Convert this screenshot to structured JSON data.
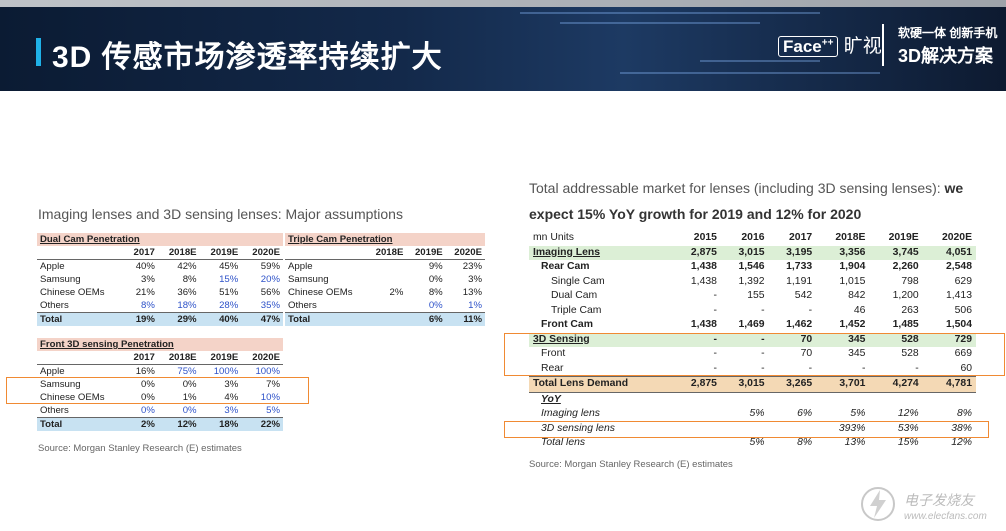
{
  "header": {
    "title": "3D 传感市场渗透率持续扩大",
    "brand_face": "Face",
    "brand_sup": "++",
    "brand_name": "旷视",
    "slogan_line1": "软硬一体 创新手机",
    "slogan_line2": "3D解决方案"
  },
  "left": {
    "caption": "Imaging lenses and 3D sensing lenses: Major assumptions",
    "dual": {
      "title": "Dual Cam Penetration",
      "cols": [
        "2017",
        "2018E",
        "2019E",
        "2020E"
      ],
      "rows": [
        {
          "label": "Apple",
          "values": [
            "40%",
            "42%",
            "45%",
            "59%"
          ]
        },
        {
          "label": "Samsung",
          "values": [
            "3%",
            "8%",
            "15%",
            "20%"
          ]
        },
        {
          "label": "Chinese OEMs",
          "values": [
            "21%",
            "36%",
            "51%",
            "56%"
          ]
        },
        {
          "label": "Others",
          "values": [
            "8%",
            "18%",
            "28%",
            "35%"
          ]
        }
      ],
      "total": {
        "label": "Total",
        "values": [
          "19%",
          "29%",
          "40%",
          "47%"
        ]
      }
    },
    "triple": {
      "title": "Triple Cam Penetration",
      "cols": [
        "2018E",
        "2019E",
        "2020E"
      ],
      "rows": [
        {
          "label": "Apple",
          "values": [
            "",
            "9%",
            "23%"
          ]
        },
        {
          "label": "Samsung",
          "values": [
            "",
            "0%",
            "3%"
          ]
        },
        {
          "label": "Chinese OEMs",
          "values": [
            "2%",
            "8%",
            "13%"
          ]
        },
        {
          "label": "Others",
          "values": [
            "",
            "0%",
            "1%"
          ]
        }
      ],
      "total": {
        "label": "Total",
        "values": [
          "",
          "6%",
          "11%"
        ]
      }
    },
    "front": {
      "title": "Front 3D sensing Penetration",
      "cols": [
        "2017",
        "2018E",
        "2019E",
        "2020E"
      ],
      "rows": [
        {
          "label": "Apple",
          "values": [
            "16%",
            "75%",
            "100%",
            "100%"
          ]
        },
        {
          "label": "Samsung",
          "values": [
            "0%",
            "0%",
            "3%",
            "7%"
          ]
        },
        {
          "label": "Chinese OEMs",
          "values": [
            "0%",
            "1%",
            "4%",
            "10%"
          ]
        },
        {
          "label": "Others",
          "values": [
            "0%",
            "0%",
            "3%",
            "5%"
          ]
        }
      ],
      "total": {
        "label": "Total",
        "values": [
          "2%",
          "12%",
          "18%",
          "22%"
        ]
      }
    },
    "source": "Source: Morgan Stanley Research (E) estimates"
  },
  "right": {
    "caption_line1": "Total addressable market for lenses (including 3D sensing lenses): ",
    "caption_line1_bold": "we",
    "caption_line2": "expect 15% YoY growth for 2019 and 12% for 2020",
    "units": "mn Units",
    "cols": [
      "2015",
      "2016",
      "2017",
      "2018E",
      "2019E",
      "2020E"
    ],
    "rows": [
      {
        "label": "Imaging Lens",
        "values": [
          "2,875",
          "3,015",
          "3,195",
          "3,356",
          "3,745",
          "4,051"
        ]
      },
      {
        "label": "Rear Cam",
        "values": [
          "1,438",
          "1,546",
          "1,733",
          "1,904",
          "2,260",
          "2,548"
        ]
      },
      {
        "label": "Single Cam",
        "values": [
          "1,438",
          "1,392",
          "1,191",
          "1,015",
          "798",
          "629"
        ]
      },
      {
        "label": "Dual Cam",
        "values": [
          "-",
          "155",
          "542",
          "842",
          "1,200",
          "1,413"
        ]
      },
      {
        "label": "Triple Cam",
        "values": [
          "-",
          "-",
          "-",
          "46",
          "263",
          "506"
        ]
      },
      {
        "label": "Front Cam",
        "values": [
          "1,438",
          "1,469",
          "1,462",
          "1,452",
          "1,485",
          "1,504"
        ]
      },
      {
        "label": "3D Sensing",
        "values": [
          "-",
          "-",
          "70",
          "345",
          "528",
          "729"
        ]
      },
      {
        "label": "Front",
        "values": [
          "-",
          "-",
          "70",
          "345",
          "528",
          "669"
        ]
      },
      {
        "label": "Rear",
        "values": [
          "-",
          "-",
          "-",
          "-",
          "-",
          "60"
        ]
      },
      {
        "label": "Total Lens Demand",
        "values": [
          "2,875",
          "3,015",
          "3,265",
          "3,701",
          "4,274",
          "4,781"
        ]
      }
    ],
    "yoy_label": "YoY",
    "yoy_rows": [
      {
        "label": "Imaging lens",
        "values": [
          "",
          "5%",
          "6%",
          "5%",
          "12%",
          "8%"
        ]
      },
      {
        "label": "3D sensing lens",
        "values": [
          "",
          "",
          "",
          "393%",
          "53%",
          "38%"
        ]
      },
      {
        "label": "Total lens",
        "values": [
          "",
          "5%",
          "8%",
          "13%",
          "15%",
          "12%"
        ]
      }
    ],
    "source": "Source: Morgan Stanley Research (E) estimates"
  },
  "watermark": {
    "text": "电子发烧友",
    "sub": "www.elecfans.com"
  },
  "colors": {
    "header_bg": "#13294a",
    "accent": "#1fb1e8",
    "highlight_box": "#f08a33",
    "pink_header": "#f4d3c8",
    "total_blue": "#c8e2f2",
    "green_row": "#dcefd6",
    "tan_total": "#f4d9b5",
    "blue_values": "#2f53c9"
  }
}
